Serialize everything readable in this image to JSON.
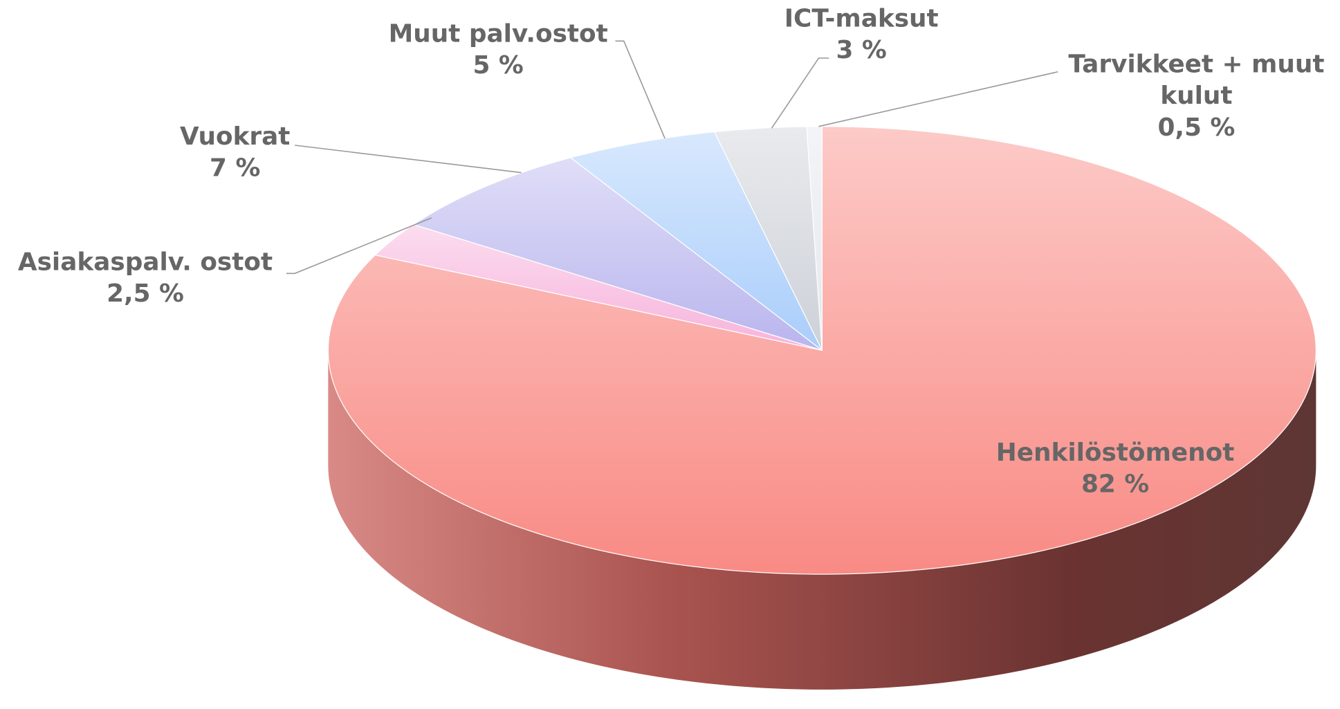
{
  "chart_data": {
    "type": "pie3d",
    "categories": [
      "Henkilöstömenot",
      "Asiakaspalv. ostot",
      "Vuokrat",
      "Muut palv.ostot",
      "ICT-maksut",
      "Tarvikkeet + muut kulut"
    ],
    "values": [
      82,
      2.5,
      7,
      5,
      3,
      0.5
    ],
    "value_labels": [
      "82 %",
      "2,5 %",
      "7 %",
      "5 %",
      "3 %",
      "0,5 %"
    ],
    "colors": [
      "#f98a84",
      "#f7b3dc",
      "#b9b5ee",
      "#a9cdfb",
      "#cdd1d8",
      "#e4e7ee"
    ]
  }
}
